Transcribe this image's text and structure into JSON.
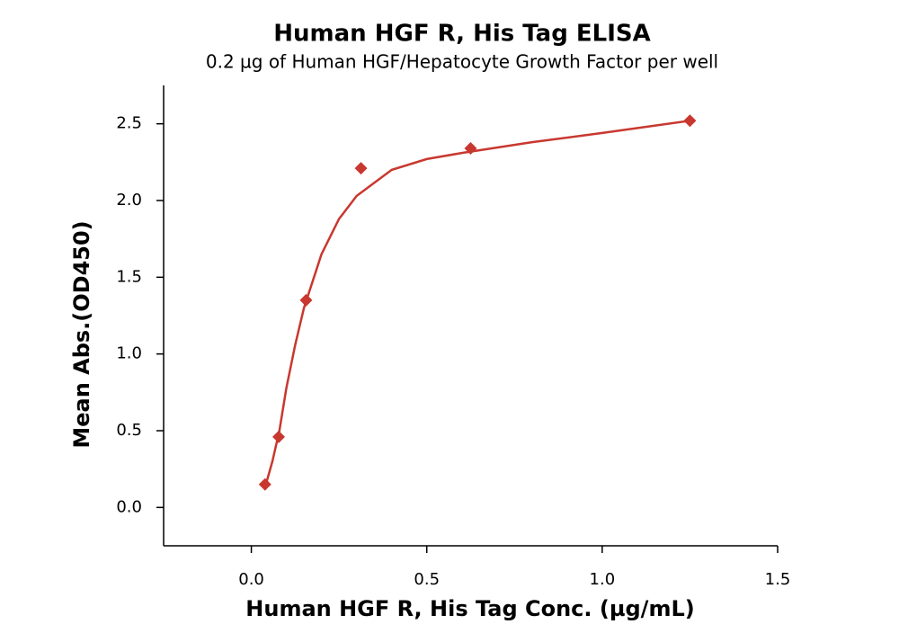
{
  "chart_data": {
    "type": "scatter",
    "title": "Human HGF R, His Tag ELISA",
    "subtitle": "0.2 µg of Human HGF/Hepatocyte Growth Factor per well",
    "x_label": "Human HGF R, His Tag Conc. (µg/mL)",
    "y_label": "Mean Abs.(OD450)",
    "x": [
      0.039,
      0.078,
      0.156,
      0.3125,
      0.625,
      1.25
    ],
    "values": [
      0.15,
      0.46,
      1.35,
      2.21,
      2.34,
      2.52
    ],
    "color": "#c8382f",
    "fit": {
      "x": [
        0.039,
        0.06,
        0.08,
        0.1,
        0.125,
        0.15,
        0.2,
        0.25,
        0.3,
        0.4,
        0.5,
        0.6,
        0.8,
        1.0,
        1.25
      ],
      "values": [
        0.13,
        0.3,
        0.5,
        0.78,
        1.06,
        1.3,
        1.65,
        1.88,
        2.03,
        2.2,
        2.27,
        2.31,
        2.38,
        2.44,
        2.52
      ],
      "color": "#c8382f"
    },
    "xlim": [
      -0.25,
      1.5
    ],
    "ylim": [
      -0.25,
      2.75
    ],
    "xticks": [
      {
        "value": 0,
        "label": "0.0"
      },
      0.5,
      {
        "value": 1,
        "label": "1.0"
      },
      1.5
    ],
    "yticks": [
      {
        "value": 0,
        "label": "0.0"
      },
      0.5,
      {
        "value": 1,
        "label": "1.0"
      },
      1.5,
      {
        "value": 2,
        "label": "2.0"
      },
      2.5
    ]
  }
}
